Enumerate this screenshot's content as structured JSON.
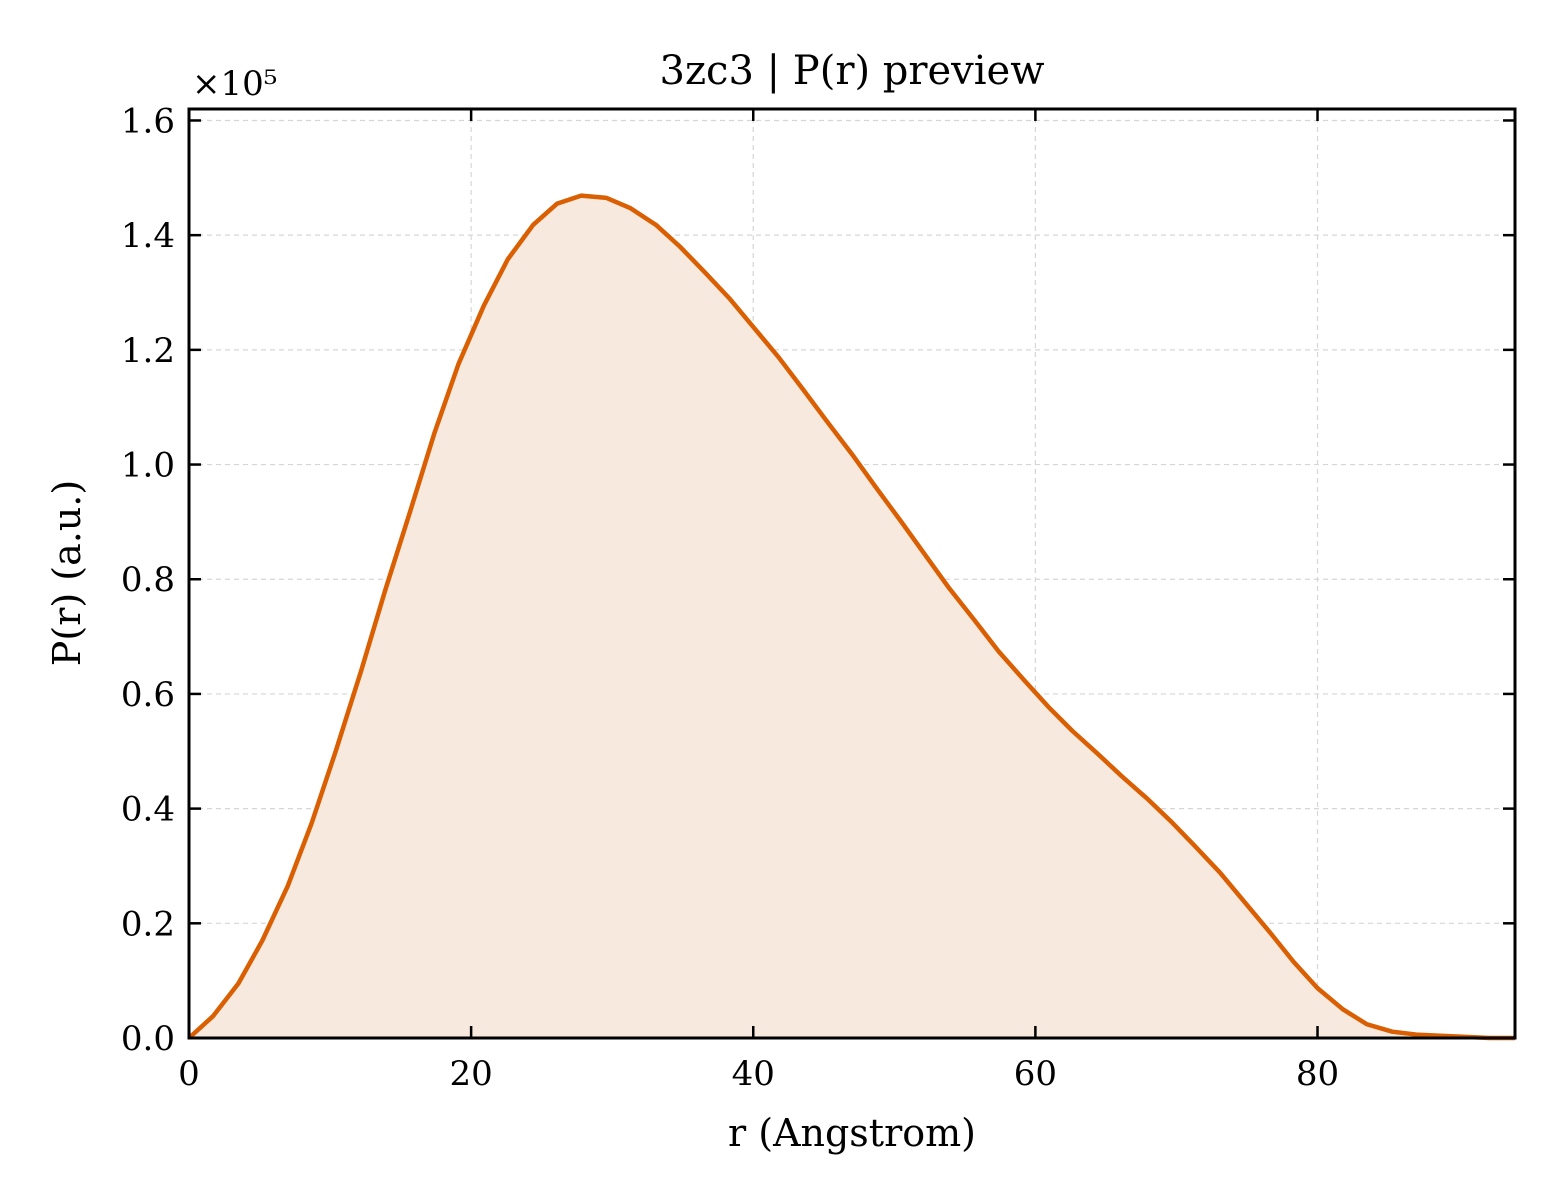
{
  "chart_data": {
    "type": "area",
    "title": "3zc3 | P(r) preview",
    "xlabel": "r (Angstrom)",
    "ylabel": "P(r) (a.u.)",
    "y_offset_label": "×10⁵",
    "xlim": [
      0,
      94
    ],
    "ylim": [
      0,
      1.62
    ],
    "xticks": [
      0,
      20,
      40,
      60,
      80
    ],
    "xtick_labels": [
      "0",
      "20",
      "40",
      "60",
      "80"
    ],
    "yticks": [
      0.0,
      0.2,
      0.4,
      0.6,
      0.8,
      1.0,
      1.2,
      1.4,
      1.6
    ],
    "ytick_labels": [
      "0.0",
      "0.2",
      "0.4",
      "0.6",
      "0.8",
      "1.0",
      "1.2",
      "1.4",
      "1.6"
    ],
    "grid": true,
    "colors": {
      "line": "#d95f02",
      "fill": "#f8e9de"
    },
    "series": [
      {
        "x": [
          0,
          1.7,
          3.5,
          5.2,
          7.0,
          8.7,
          10.4,
          12.2,
          13.9,
          15.7,
          17.4,
          19.1,
          20.9,
          22.6,
          24.4,
          26.1,
          27.8,
          29.6,
          31.3,
          33.1,
          34.8,
          36.5,
          38.3,
          40.0,
          41.8,
          43.5,
          45.2,
          47.0,
          48.7,
          50.5,
          52.2,
          53.9,
          55.7,
          57.4,
          59.2,
          60.9,
          62.6,
          64.4,
          66.1,
          67.9,
          69.6,
          71.3,
          73.1,
          74.8,
          76.6,
          78.3,
          80.0,
          81.8,
          83.5,
          85.3,
          87.0,
          88.7,
          90.5,
          92.2,
          94.0
        ],
        "values": [
          0.0,
          0.038,
          0.095,
          0.17,
          0.265,
          0.375,
          0.5,
          0.64,
          0.78,
          0.92,
          1.055,
          1.175,
          1.277,
          1.358,
          1.418,
          1.455,
          1.469,
          1.465,
          1.447,
          1.418,
          1.38,
          1.337,
          1.29,
          1.24,
          1.187,
          1.132,
          1.076,
          1.018,
          0.96,
          0.9,
          0.842,
          0.784,
          0.728,
          0.674,
          0.624,
          0.578,
          0.536,
          0.496,
          0.457,
          0.418,
          0.378,
          0.335,
          0.288,
          0.238,
          0.185,
          0.133,
          0.087,
          0.05,
          0.024,
          0.011,
          0.006,
          0.004,
          0.002,
          0.0,
          0.0
        ]
      }
    ]
  }
}
